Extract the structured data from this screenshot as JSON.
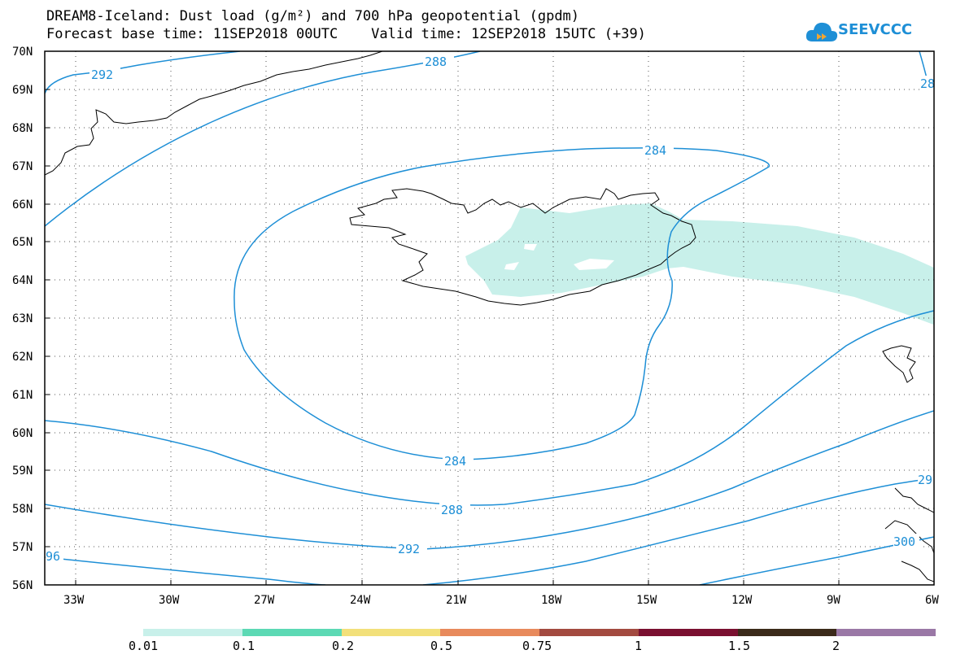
{
  "title": {
    "line1": "DREAM8-Iceland: Dust load (g/m²) and 700 hPa geopotential (gpdm)",
    "line2": "Forecast base time: 11SEP2018 00UTC    Valid time: 12SEP2018 15UTC (+39)"
  },
  "logo": {
    "text": "SEEVCCC",
    "color": "#1e8fd6"
  },
  "map": {
    "lat_labels": [
      "70N",
      "69N",
      "68N",
      "67N",
      "66N",
      "65N",
      "64N",
      "63N",
      "62N",
      "61N",
      "60N",
      "59N",
      "58N",
      "57N",
      "56N"
    ],
    "lon_labels": [
      "33W",
      "30W",
      "27W",
      "24W",
      "21W",
      "18W",
      "15W",
      "12W",
      "9W",
      "6W"
    ],
    "contour_color": "#1e8fd6",
    "dust_color": "#c8f0ea",
    "contour_labels": [
      "292",
      "288",
      "284",
      "284",
      "288",
      "292",
      "96",
      "28",
      "29",
      "300"
    ]
  },
  "colorbar": {
    "colors": [
      "#c8f0ea",
      "#5cd9b4",
      "#f2e07a",
      "#e88a5c",
      "#a34a40",
      "#7a1030",
      "#3b2a1a",
      "#9a78a6"
    ],
    "labels": [
      "0.01",
      "0.1",
      "0.2",
      "0.5",
      "0.75",
      "1",
      "1.5",
      "2"
    ]
  }
}
